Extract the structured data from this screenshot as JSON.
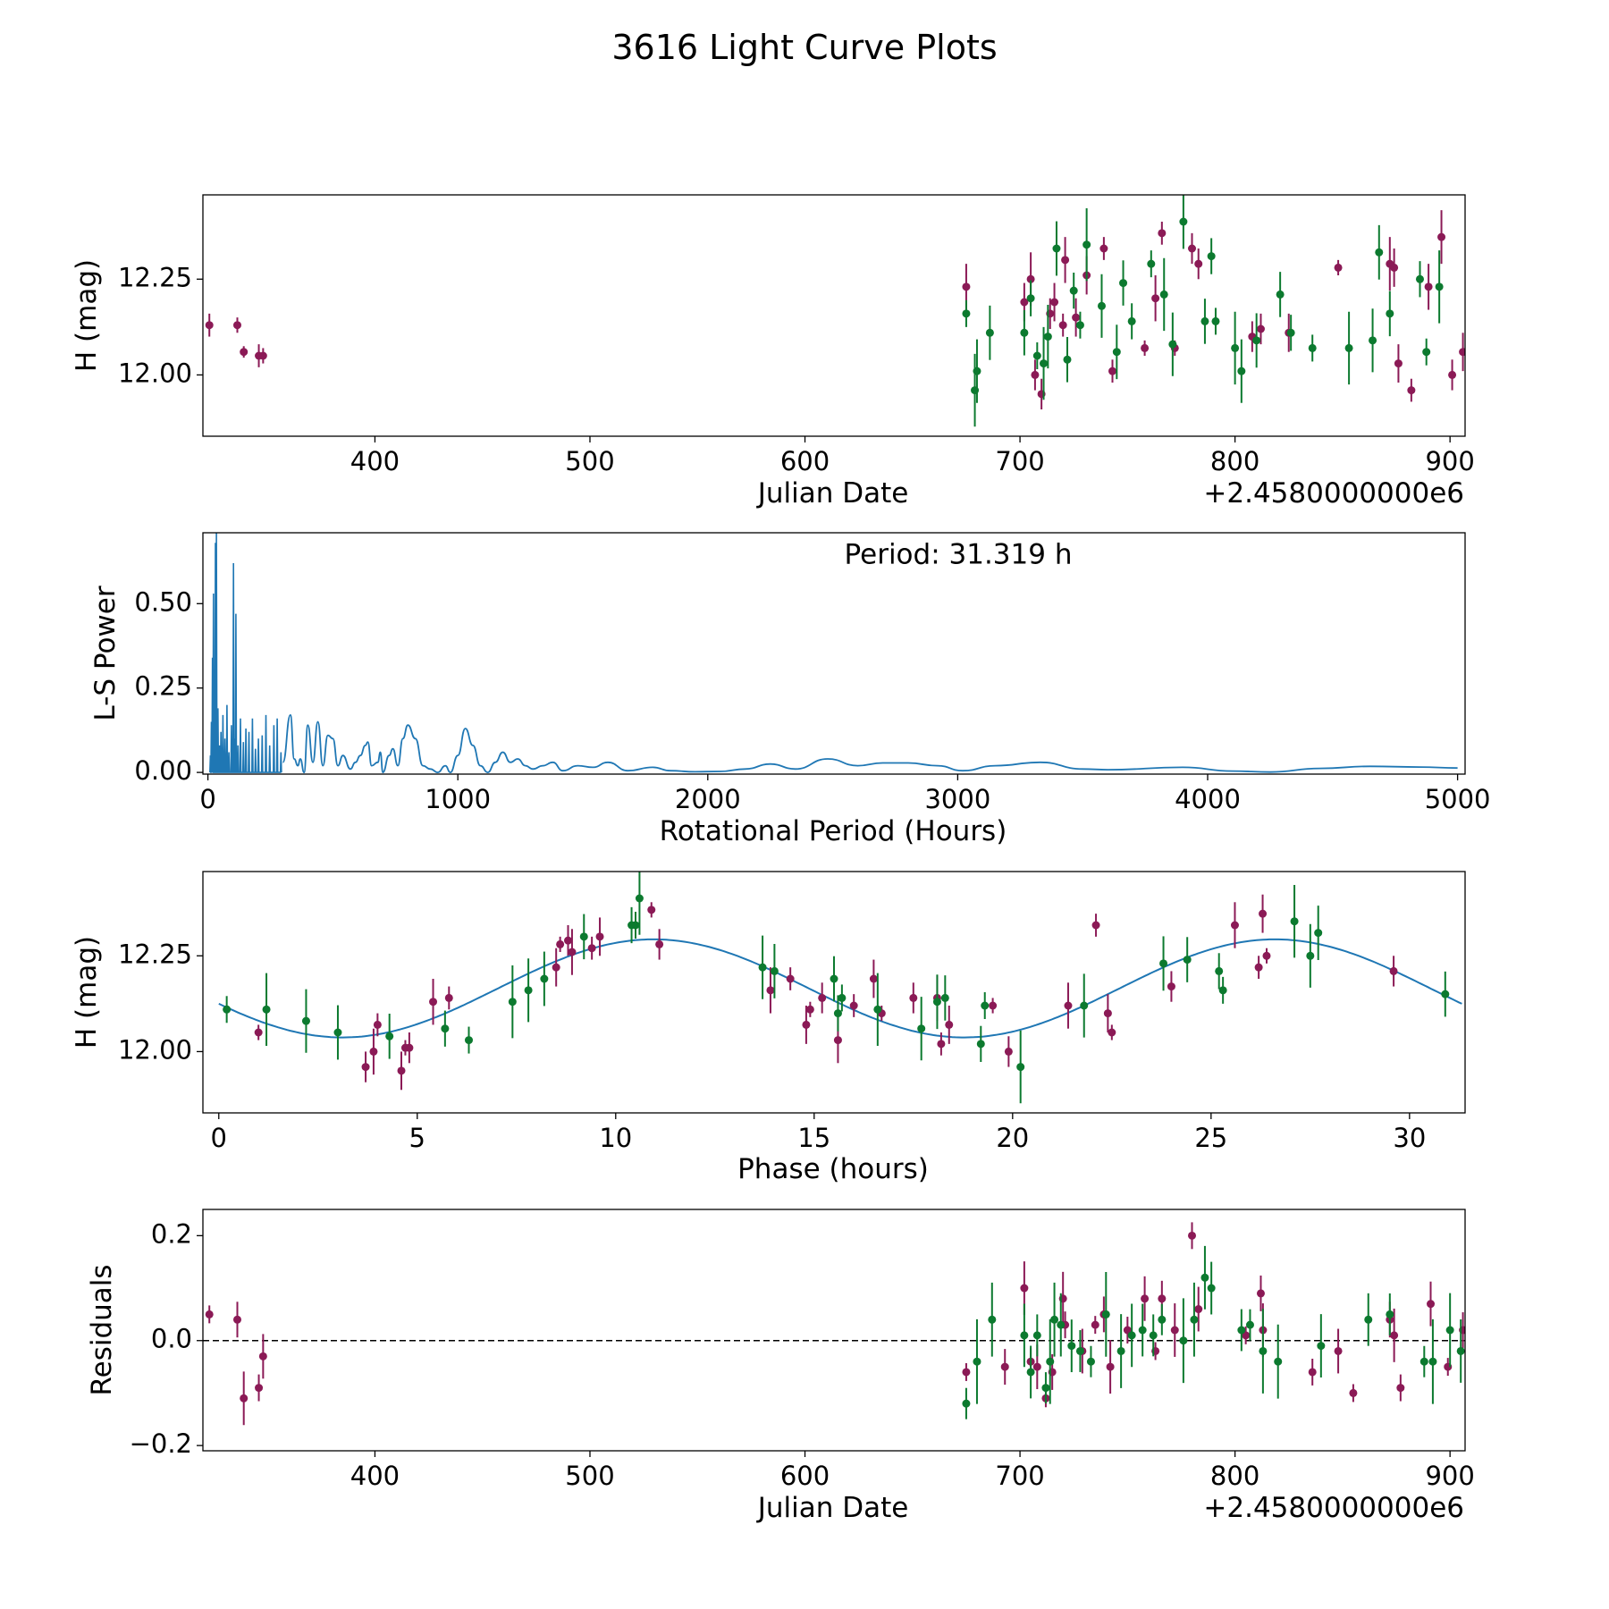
{
  "figure": {
    "title": "3616 Light Curve Plots",
    "colors": {
      "purple": "#8b1a56",
      "green": "#0c7a2f",
      "line": "#1f77b4",
      "axis": "#000000"
    }
  },
  "chart_data": [
    {
      "id": "lightcurve",
      "type": "scatter",
      "title": "",
      "xlabel": "Julian Date",
      "ylabel": "H (mag)",
      "x_offset_label": "+2.4580000000e6",
      "xlim": [
        320,
        907
      ],
      "ylim": [
        11.84,
        12.47
      ],
      "xticks": [
        400,
        500,
        600,
        700,
        800,
        900
      ],
      "xtick_labels": [
        "400",
        "500",
        "600",
        "700",
        "800",
        "900"
      ],
      "yticks": [
        12.0,
        12.25
      ],
      "ytick_labels": [
        "12.00",
        "12.25"
      ],
      "series": [
        {
          "name": "purple",
          "color": "#8b1a56",
          "x": [
            323,
            336,
            339,
            346,
            348,
            675,
            705,
            702,
            707,
            710,
            714,
            716,
            720,
            721,
            726,
            731,
            739,
            743,
            758,
            763,
            766,
            772,
            780,
            783,
            808,
            812,
            825,
            848,
            872,
            874,
            876,
            882,
            890,
            896,
            901,
            906
          ],
          "y": [
            12.13,
            12.13,
            12.06,
            12.05,
            12.05,
            12.23,
            12.25,
            12.19,
            12.0,
            11.95,
            12.16,
            12.19,
            12.13,
            12.3,
            12.15,
            12.26,
            12.33,
            12.01,
            12.07,
            12.2,
            12.37,
            12.07,
            12.33,
            12.29,
            12.1,
            12.12,
            12.11,
            12.28,
            12.29,
            12.28,
            12.03,
            11.96,
            12.23,
            12.36,
            12.0,
            12.06
          ],
          "err": [
            0.03,
            0.02,
            0.015,
            0.03,
            0.02,
            0.06,
            0.07,
            0.05,
            0.04,
            0.04,
            0.04,
            0.05,
            0.03,
            0.06,
            0.05,
            0.05,
            0.03,
            0.03,
            0.02,
            0.06,
            0.03,
            0.02,
            0.04,
            0.04,
            0.04,
            0.04,
            0.05,
            0.02,
            0.07,
            0.05,
            0.05,
            0.03,
            0.06,
            0.07,
            0.04,
            0.05
          ]
        },
        {
          "name": "green",
          "color": "#0c7a2f",
          "x": [
            675,
            679,
            680,
            686,
            702,
            705,
            708,
            711,
            713,
            717,
            722,
            725,
            728,
            731,
            738,
            745,
            748,
            752,
            761,
            767,
            771,
            776,
            786,
            789,
            791,
            800,
            803,
            810,
            821,
            826,
            836,
            853,
            864,
            867,
            872,
            886,
            889,
            895
          ],
          "y": [
            12.16,
            11.96,
            12.01,
            12.11,
            12.11,
            12.2,
            12.05,
            12.03,
            12.1,
            12.33,
            12.04,
            12.22,
            12.13,
            12.34,
            12.18,
            12.06,
            12.24,
            12.14,
            12.29,
            12.21,
            12.08,
            12.4,
            12.14,
            12.31,
            12.14,
            12.07,
            12.01,
            12.09,
            12.21,
            12.11,
            12.07,
            12.07,
            12.09,
            12.32,
            12.16,
            12.25,
            12.06,
            12.23
          ]
        }
      ]
    },
    {
      "id": "periodogram",
      "type": "line",
      "title": "",
      "xlabel": "Rotational Period (Hours)",
      "ylabel": "L-S Power",
      "annotation": "Period: 31.319 h",
      "xlim": [
        -20,
        5030
      ],
      "ylim": [
        -0.005,
        0.71
      ],
      "xticks": [
        0,
        1000,
        2000,
        3000,
        4000,
        5000
      ],
      "xtick_labels": [
        "0",
        "1000",
        "2000",
        "3000",
        "4000",
        "5000"
      ],
      "yticks": [
        0.0,
        0.25,
        0.5
      ],
      "ytick_labels": [
        "0.00",
        "0.25",
        "0.50"
      ],
      "spikes": [
        [
          8,
          0.05
        ],
        [
          12,
          0.15
        ],
        [
          16,
          0.34
        ],
        [
          20,
          0.53
        ],
        [
          24,
          0.21
        ],
        [
          28,
          0.68
        ],
        [
          32,
          0.71
        ],
        [
          38,
          0.19
        ],
        [
          44,
          0.08
        ],
        [
          50,
          0.12
        ],
        [
          58,
          0.17
        ],
        [
          66,
          0.1
        ],
        [
          74,
          0.2
        ],
        [
          82,
          0.06
        ],
        [
          92,
          0.14
        ],
        [
          100,
          0.62
        ],
        [
          106,
          0.1
        ],
        [
          110,
          0.47
        ],
        [
          118,
          0.08
        ],
        [
          128,
          0.16
        ],
        [
          140,
          0.09
        ],
        [
          150,
          0.13
        ],
        [
          162,
          0.12
        ],
        [
          176,
          0.16
        ],
        [
          188,
          0.07
        ],
        [
          200,
          0.1
        ],
        [
          215,
          0.11
        ],
        [
          230,
          0.17
        ],
        [
          245,
          0.08
        ],
        [
          262,
          0.14
        ],
        [
          275,
          0.16
        ],
        [
          290,
          0.06
        ]
      ],
      "points": [
        [
          300,
          0.03
        ],
        [
          330,
          0.17
        ],
        [
          345,
          0.04
        ],
        [
          360,
          0.02
        ],
        [
          370,
          0.04
        ],
        [
          385,
          0.0
        ],
        [
          400,
          0.14
        ],
        [
          420,
          0.03
        ],
        [
          440,
          0.15
        ],
        [
          460,
          0.02
        ],
        [
          480,
          0.11
        ],
        [
          500,
          0.1
        ],
        [
          520,
          0.02
        ],
        [
          540,
          0.05
        ],
        [
          570,
          0.01
        ],
        [
          590,
          0.03
        ],
        [
          610,
          0.05
        ],
        [
          630,
          0.08
        ],
        [
          640,
          0.09
        ],
        [
          655,
          0.02
        ],
        [
          680,
          0.03
        ],
        [
          690,
          0.06
        ],
        [
          700,
          0.0
        ],
        [
          725,
          0.05
        ],
        [
          740,
          0.07
        ],
        [
          760,
          0.02
        ],
        [
          780,
          0.1
        ],
        [
          800,
          0.14
        ],
        [
          830,
          0.1
        ],
        [
          860,
          0.02
        ],
        [
          890,
          0.01
        ],
        [
          920,
          0.0
        ],
        [
          950,
          0.02
        ],
        [
          970,
          0.0
        ],
        [
          1000,
          0.05
        ],
        [
          1030,
          0.13
        ],
        [
          1060,
          0.08
        ],
        [
          1090,
          0.02
        ],
        [
          1120,
          0.0
        ],
        [
          1150,
          0.03
        ],
        [
          1180,
          0.06
        ],
        [
          1210,
          0.03
        ],
        [
          1240,
          0.04
        ],
        [
          1270,
          0.02
        ],
        [
          1300,
          0.01
        ],
        [
          1340,
          0.02
        ],
        [
          1380,
          0.03
        ],
        [
          1420,
          0.005
        ],
        [
          1480,
          0.02
        ],
        [
          1540,
          0.015
        ],
        [
          1600,
          0.03
        ],
        [
          1680,
          0.005
        ],
        [
          1780,
          0.015
        ],
        [
          1850,
          0.005
        ],
        [
          1950,
          0.002
        ],
        [
          2050,
          0.003
        ],
        [
          2150,
          0.01
        ],
        [
          2250,
          0.025
        ],
        [
          2350,
          0.01
        ],
        [
          2480,
          0.04
        ],
        [
          2600,
          0.02
        ],
        [
          2700,
          0.028
        ],
        [
          2800,
          0.028
        ],
        [
          2920,
          0.02
        ],
        [
          3020,
          0.005
        ],
        [
          3150,
          0.02
        ],
        [
          3330,
          0.03
        ],
        [
          3500,
          0.01
        ],
        [
          3600,
          0.008
        ],
        [
          3900,
          0.015
        ],
        [
          4100,
          0.004
        ],
        [
          4250,
          0.001
        ],
        [
          4450,
          0.012
        ],
        [
          4650,
          0.018
        ],
        [
          4850,
          0.016
        ],
        [
          5000,
          0.013
        ]
      ]
    },
    {
      "id": "phased",
      "type": "scatter",
      "title": "",
      "xlabel": "Phase (hours)",
      "ylabel": "H (mag)",
      "xlim": [
        -0.4,
        31.4
      ],
      "ylim": [
        11.84,
        12.47
      ],
      "xticks": [
        0,
        5,
        10,
        15,
        20,
        25,
        30
      ],
      "xtick_labels": [
        "0",
        "5",
        "10",
        "15",
        "20",
        "25",
        "30"
      ],
      "yticks": [
        12.0,
        12.25
      ],
      "ytick_labels": [
        "12.00",
        "12.25"
      ],
      "model": {
        "period": 31.319,
        "mean": 12.165,
        "amplitude": 0.128,
        "phase_max": 10.95
      },
      "series": [
        {
          "name": "purple",
          "color": "#8b1a56",
          "x": [
            1.0,
            3.7,
            3.9,
            4.0,
            4.6,
            4.7,
            4.8,
            5.4,
            5.8,
            8.5,
            8.6,
            8.8,
            8.9,
            9.4,
            9.6,
            10.9,
            11.1,
            13.9,
            14.4,
            14.8,
            14.9,
            15.2,
            15.6,
            16.0,
            16.5,
            16.7,
            17.5,
            18.1,
            18.2,
            18.4,
            19.5,
            19.9,
            21.4,
            22.1,
            22.4,
            22.5,
            24.0,
            25.6,
            26.2,
            26.3,
            26.4,
            29.6
          ],
          "y": [
            12.05,
            11.96,
            12.0,
            12.07,
            11.95,
            12.01,
            12.01,
            12.13,
            12.14,
            12.22,
            12.28,
            12.29,
            12.26,
            12.27,
            12.3,
            12.37,
            12.28,
            12.16,
            12.19,
            12.07,
            12.11,
            12.14,
            12.03,
            12.12,
            12.19,
            12.1,
            12.14,
            12.14,
            12.02,
            12.07,
            12.12,
            12.0,
            12.12,
            12.33,
            12.1,
            12.05,
            12.17,
            12.33,
            12.22,
            12.36,
            12.25,
            12.21
          ]
        },
        {
          "name": "green",
          "color": "#0c7a2f",
          "x": [
            0.2,
            1.2,
            2.2,
            3.0,
            4.3,
            5.7,
            6.3,
            7.4,
            7.8,
            8.2,
            9.2,
            10.4,
            10.5,
            10.6,
            13.7,
            14.0,
            15.5,
            15.6,
            15.7,
            16.6,
            17.7,
            18.1,
            18.3,
            19.2,
            19.3,
            20.2,
            21.8,
            23.8,
            24.4,
            25.2,
            25.3,
            27.1,
            27.5,
            27.7,
            30.9
          ],
          "y": [
            12.11,
            12.11,
            12.08,
            12.05,
            12.04,
            12.06,
            12.03,
            12.13,
            12.16,
            12.19,
            12.3,
            12.33,
            12.33,
            12.4,
            12.22,
            12.21,
            12.19,
            12.1,
            12.14,
            12.11,
            12.06,
            12.13,
            12.14,
            12.02,
            12.12,
            11.96,
            12.12,
            12.23,
            12.24,
            12.21,
            12.16,
            12.34,
            12.25,
            12.31,
            12.15
          ]
        }
      ]
    },
    {
      "id": "residuals",
      "type": "scatter",
      "title": "",
      "xlabel": "Julian Date",
      "ylabel": "Residuals",
      "x_offset_label": "+2.4580000000e6",
      "xlim": [
        320,
        907
      ],
      "ylim": [
        -0.21,
        0.25
      ],
      "xticks": [
        400,
        500,
        600,
        700,
        800,
        900
      ],
      "xtick_labels": [
        "400",
        "500",
        "600",
        "700",
        "800",
        "900"
      ],
      "yticks": [
        -0.2,
        0.0,
        0.2
      ],
      "ytick_labels": [
        "−0.2",
        "0.0",
        "0.2"
      ],
      "zero_line": 0.0,
      "series": [
        {
          "name": "purple",
          "color": "#8b1a56",
          "x": [
            323,
            336,
            339,
            346,
            348,
            675,
            693,
            702,
            705,
            708,
            712,
            715,
            720,
            721,
            729,
            735,
            739,
            742,
            750,
            758,
            763,
            766,
            772,
            780,
            783,
            805,
            812,
            813,
            836,
            848,
            855,
            872,
            874,
            877,
            891,
            899,
            906
          ],
          "y": [
            0.05,
            0.04,
            -0.11,
            -0.09,
            -0.03,
            -0.06,
            -0.05,
            0.1,
            -0.04,
            -0.05,
            -0.11,
            -0.06,
            0.08,
            0.03,
            -0.02,
            0.03,
            0.05,
            -0.05,
            0.02,
            0.08,
            -0.02,
            0.08,
            0.02,
            0.2,
            0.06,
            0.01,
            0.09,
            0.02,
            -0.06,
            -0.02,
            -0.1,
            0.04,
            0.01,
            -0.09,
            0.07,
            -0.05,
            0.02
          ]
        },
        {
          "name": "green",
          "color": "#0c7a2f",
          "x": [
            675,
            680,
            687,
            702,
            705,
            708,
            712,
            714,
            716,
            719,
            724,
            728,
            733,
            740,
            747,
            752,
            757,
            762,
            766,
            776,
            781,
            786,
            789,
            803,
            807,
            813,
            820,
            840,
            862,
            872,
            888,
            892,
            900,
            905
          ],
          "y": [
            -0.12,
            -0.04,
            0.04,
            0.01,
            -0.06,
            0.01,
            -0.09,
            -0.04,
            0.04,
            0.03,
            -0.01,
            -0.02,
            -0.04,
            0.05,
            -0.02,
            0.01,
            0.02,
            0.01,
            0.04,
            0.0,
            0.04,
            0.12,
            0.1,
            0.02,
            0.03,
            -0.02,
            -0.04,
            -0.01,
            0.04,
            0.05,
            -0.04,
            -0.04,
            0.02,
            -0.02
          ]
        }
      ]
    }
  ]
}
